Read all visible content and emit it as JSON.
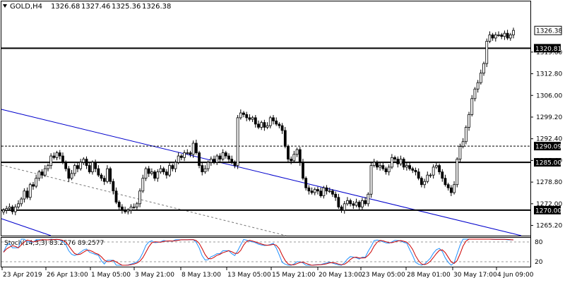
{
  "header": {
    "symbol": "GOLD,H4",
    "open": "1326.68",
    "high": "1327.46",
    "low": "1325.36",
    "close": "1326.38"
  },
  "price_axis": {
    "ticks": [
      "1319.60",
      "1312.80",
      "1306.00",
      "1299.20",
      "1292.40",
      "1285.60",
      "1278.80",
      "1272.00",
      "1265.20"
    ],
    "ylim": [
      1262.0,
      1335.5
    ]
  },
  "levels": [
    {
      "price": 1320.81,
      "label": "1320.81",
      "style": "solid"
    },
    {
      "price": 1290.09,
      "label": "1290.09",
      "style": "dashed"
    },
    {
      "price": 1285.0,
      "label": "1285.00",
      "style": "solid"
    },
    {
      "price": 1270.0,
      "label": "1270.00",
      "style": "solid"
    }
  ],
  "current_price": {
    "label": "1326.38",
    "price": 1326.38
  },
  "time_axis": {
    "labels": [
      "23 Apr 2019",
      "26 Apr 13:00",
      "1 May 05:00",
      "3 May 21:00",
      "8 May 13:00",
      "13 May 05:00",
      "15 May 21:00",
      "20 May 13:00",
      "23 May 05:00",
      "28 May 01:00",
      "30 May 17:00",
      "4 Jun 09:00"
    ]
  },
  "stoch": {
    "label": "Stoch(14,3,3) 83.2576 89.2577",
    "levels": [
      "80",
      "20"
    ]
  },
  "chart_data": {
    "type": "candlestick",
    "title": "GOLD,H4",
    "ylim": [
      1262.0,
      1335.5
    ],
    "closes": [
      1270,
      1270.5,
      1271,
      1269.5,
      1271,
      1272,
      1273.5,
      1276,
      1274,
      1278,
      1277.5,
      1280,
      1282,
      1281,
      1283,
      1284,
      1287,
      1286.5,
      1288,
      1287,
      1285,
      1283,
      1280,
      1281.5,
      1284,
      1283,
      1285,
      1286,
      1284,
      1282,
      1285,
      1283,
      1281,
      1280,
      1279,
      1283,
      1279,
      1276,
      1272.5,
      1271,
      1270,
      1269.5,
      1270,
      1271,
      1271,
      1272,
      1276,
      1280,
      1283,
      1281.5,
      1282,
      1280,
      1282,
      1283,
      1282,
      1281,
      1284,
      1283,
      1285,
      1287,
      1286.5,
      1288,
      1288,
      1287.5,
      1291,
      1288,
      1284,
      1282,
      1283,
      1285,
      1286,
      1285,
      1287,
      1286,
      1288,
      1287,
      1286,
      1285,
      1284,
      1299,
      1300.5,
      1300,
      1299,
      1298.5,
      1299,
      1297,
      1296,
      1297.5,
      1296,
      1296.5,
      1299,
      1298,
      1297,
      1296.5,
      1295,
      1290,
      1286,
      1285.5,
      1287.5,
      1289,
      1285,
      1280,
      1277,
      1276,
      1275.5,
      1276.5,
      1276,
      1274.5,
      1277,
      1276,
      1276,
      1275,
      1274,
      1271,
      1270,
      1272,
      1273,
      1272,
      1271.5,
      1272.5,
      1271,
      1273,
      1272,
      1275,
      1284,
      1285,
      1283.5,
      1284,
      1283,
      1282,
      1283.5,
      1286.5,
      1286,
      1284.5,
      1286,
      1283.5,
      1284,
      1283,
      1282.5,
      1282,
      1280,
      1278,
      1279,
      1281,
      1281,
      1283.5,
      1284,
      1282,
      1280,
      1278,
      1277,
      1275.5,
      1278,
      1286,
      1290,
      1291.5,
      1296,
      1300,
      1305,
      1308,
      1310,
      1313,
      1316,
      1323,
      1325,
      1324,
      1325,
      1325,
      1324.5,
      1325.5,
      1324,
      1325,
      1326.4
    ]
  }
}
